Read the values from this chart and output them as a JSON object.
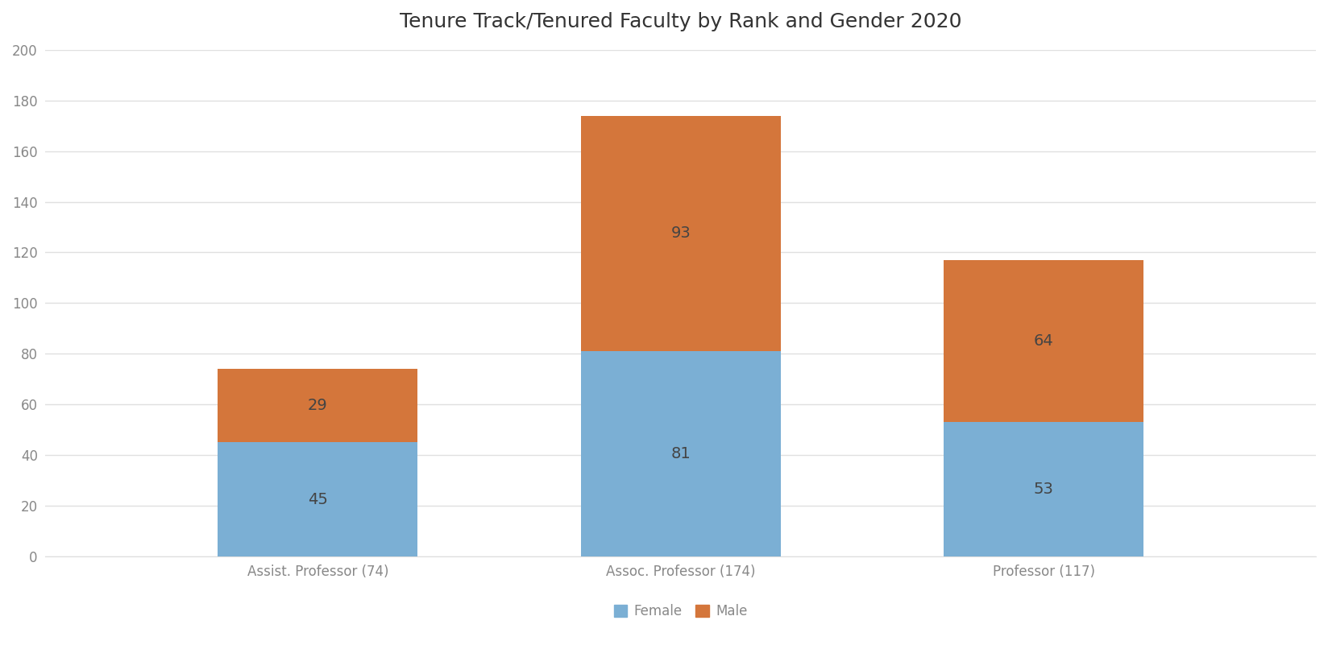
{
  "title": "Tenure Track/Tenured Faculty by Rank and Gender 2020",
  "categories": [
    "Assist. Professor (74)",
    "Assoc. Professor (174)",
    "Professor (117)"
  ],
  "female_values": [
    45,
    81,
    53
  ],
  "male_values": [
    29,
    93,
    64
  ],
  "female_color": "#7bafd4",
  "male_color": "#d4763b",
  "ylim": [
    0,
    200
  ],
  "yticks": [
    0,
    20,
    40,
    60,
    80,
    100,
    120,
    140,
    160,
    180,
    200
  ],
  "legend_labels": [
    "Female",
    "Male"
  ],
  "background_color": "#ffffff",
  "title_fontsize": 18,
  "tick_fontsize": 12,
  "label_fontsize": 12,
  "bar_label_fontsize": 14,
  "bar_width": 0.55
}
